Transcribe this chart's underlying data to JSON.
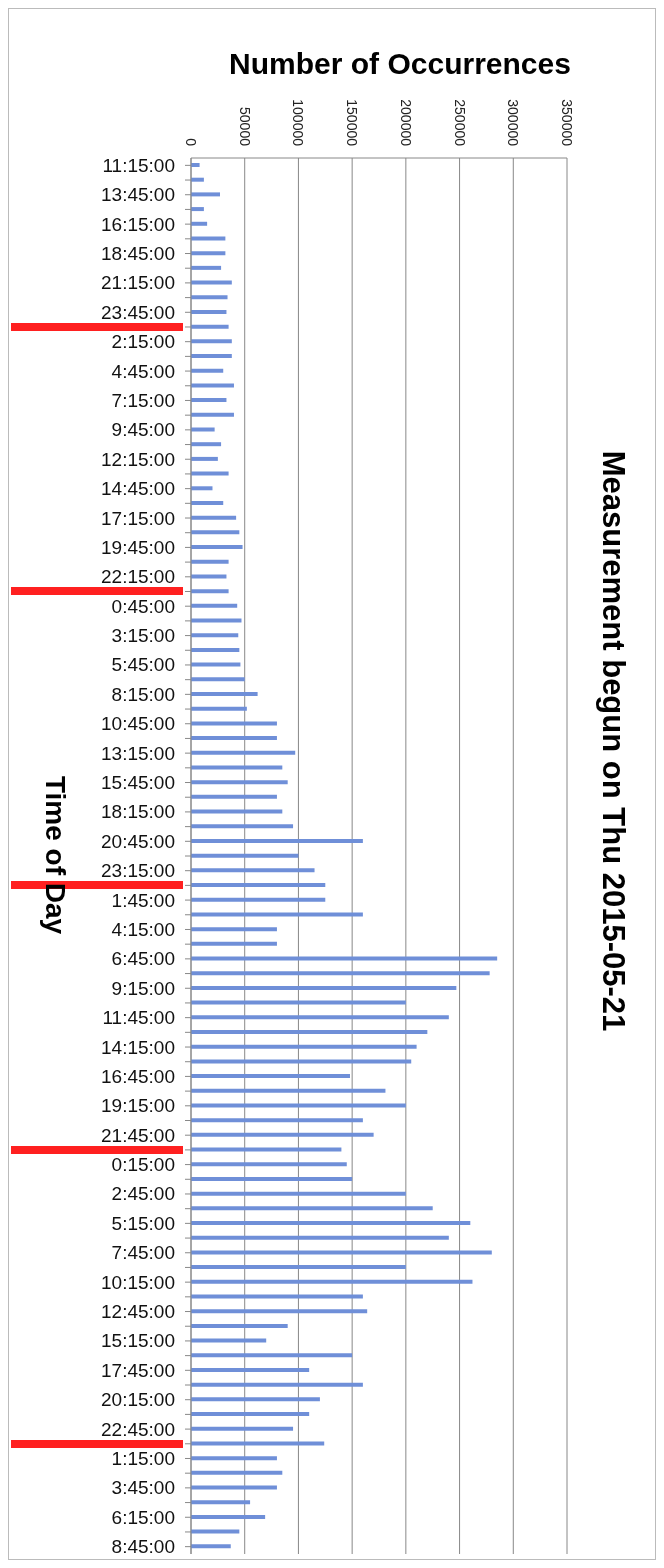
{
  "chart_data": {
    "type": "bar",
    "orientation": "horizontal",
    "title": "Measurement begun on Thu 2015-05-21",
    "xlabel": "Number of Occurrences",
    "ylabel": "Time of Day",
    "categories": [
      "11:15:00",
      null,
      "13:45:00",
      null,
      "16:15:00",
      null,
      "18:45:00",
      null,
      "21:15:00",
      null,
      "23:45:00",
      null,
      "2:15:00",
      null,
      "4:45:00",
      null,
      "7:15:00",
      null,
      "9:45:00",
      null,
      "12:15:00",
      null,
      "14:45:00",
      null,
      "17:15:00",
      null,
      "19:45:00",
      null,
      "22:15:00",
      null,
      "0:45:00",
      null,
      "3:15:00",
      null,
      "5:45:00",
      null,
      "8:15:00",
      null,
      "10:45:00",
      null,
      "13:15:00",
      null,
      "15:45:00",
      null,
      "18:15:00",
      null,
      "20:45:00",
      null,
      "23:15:00",
      null,
      "1:45:00",
      null,
      "4:15:00",
      null,
      "6:45:00",
      null,
      "9:15:00",
      null,
      "11:45:00",
      null,
      "14:15:00",
      null,
      "16:45:00",
      null,
      "19:15:00",
      null,
      "21:45:00",
      null,
      "0:15:00",
      null,
      "2:45:00",
      null,
      "5:15:00",
      null,
      "7:45:00",
      null,
      "10:15:00",
      null,
      "12:45:00",
      null,
      "15:15:00",
      null,
      "17:45:00",
      null,
      "20:15:00",
      null,
      "22:45:00",
      null,
      "1:15:00",
      null,
      "3:45:00",
      null,
      "6:15:00",
      null,
      "8:45:00"
    ],
    "values": [
      8000,
      12000,
      27000,
      12000,
      15000,
      32000,
      32000,
      28000,
      38000,
      34000,
      33000,
      35000,
      38000,
      38000,
      30000,
      40000,
      33000,
      40000,
      22000,
      28000,
      25000,
      35000,
      20000,
      30000,
      42000,
      45000,
      48000,
      35000,
      33000,
      35000,
      43000,
      47000,
      44000,
      45000,
      46000,
      50000,
      62000,
      52000,
      80000,
      80000,
      97000,
      85000,
      90000,
      80000,
      85000,
      95000,
      160000,
      100000,
      115000,
      125000,
      125000,
      160000,
      80000,
      80000,
      285000,
      278000,
      247000,
      200000,
      240000,
      220000,
      210000,
      205000,
      148000,
      181000,
      200000,
      160000,
      170000,
      140000,
      145000,
      150000,
      200000,
      225000,
      260000,
      240000,
      280000,
      200000,
      262000,
      160000,
      164000,
      90000,
      70000,
      150000,
      110000,
      160000,
      120000,
      110000,
      95000,
      124000,
      80000,
      85000,
      80000,
      55000,
      69000,
      45000,
      37000
    ],
    "color": "#6f8fd8",
    "xlim": [
      0,
      350000
    ],
    "xticks": [
      0,
      50000,
      100000,
      150000,
      200000,
      250000,
      300000,
      350000
    ],
    "grid": "x"
  }
}
